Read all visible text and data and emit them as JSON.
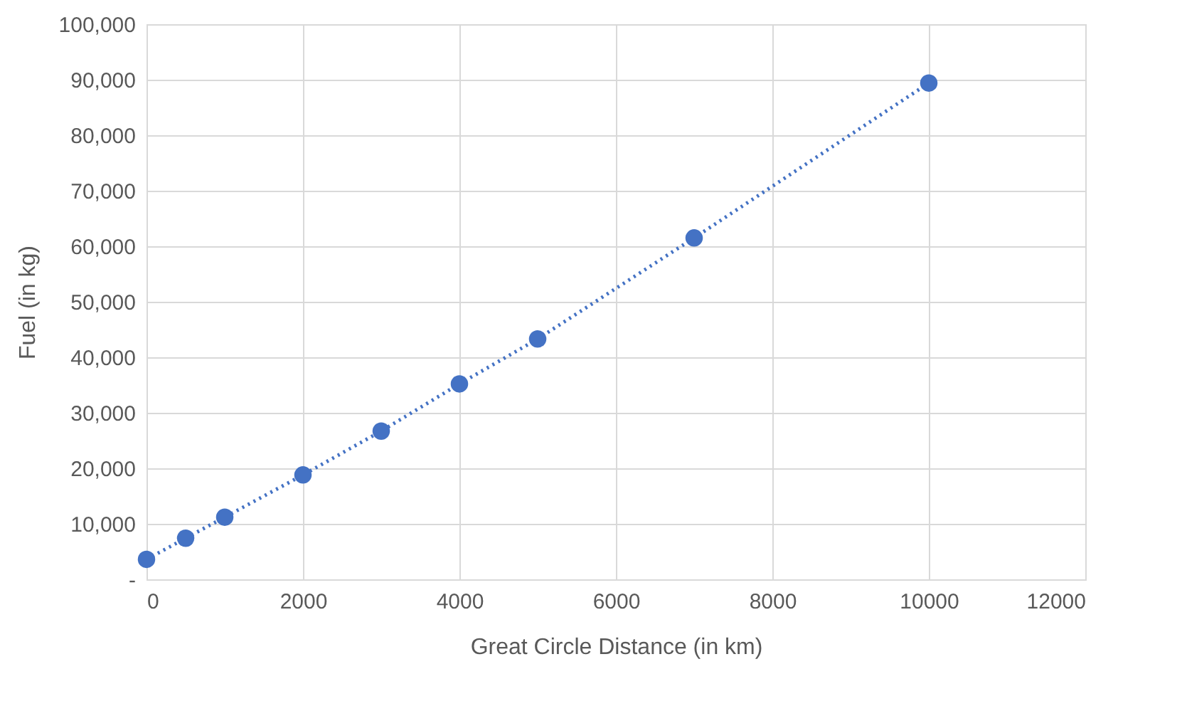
{
  "chart_data": {
    "type": "line",
    "xlabel": "Great Circle Distance (in km)",
    "ylabel": "Fuel (in kg)",
    "x": [
      0,
      500,
      1000,
      2000,
      3000,
      4000,
      5000,
      7000,
      10000
    ],
    "series": [
      {
        "color": "#4472c4",
        "values": [
          3600,
          7400,
          11200,
          18800,
          26700,
          35200,
          43300,
          61500,
          89400
        ]
      }
    ],
    "marker": "circle",
    "line_style": "dotted",
    "grid": true,
    "xlim": [
      0,
      12000
    ],
    "xticks": [
      0,
      2000,
      4000,
      6000,
      8000,
      10000,
      12000
    ],
    "ylim": [
      0,
      100000
    ],
    "yticks": [
      {
        "value": 0,
        "label": "-"
      },
      {
        "value": 10000,
        "label": "10,000"
      },
      {
        "value": 20000,
        "label": "20,000"
      },
      {
        "value": 30000,
        "label": "30,000"
      },
      {
        "value": 40000,
        "label": "40,000"
      },
      {
        "value": 50000,
        "label": "50,000"
      },
      {
        "value": 60000,
        "label": "60,000"
      },
      {
        "value": 70000,
        "label": "70,000"
      },
      {
        "value": 80000,
        "label": "80,000"
      },
      {
        "value": 90000,
        "label": "90,000"
      },
      {
        "value": 100000,
        "label": "100,000"
      }
    ]
  }
}
